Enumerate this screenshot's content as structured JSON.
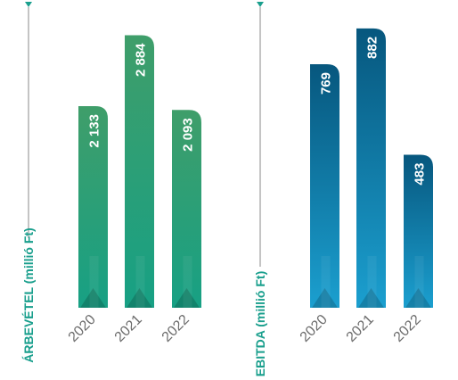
{
  "chart_data": [
    {
      "type": "bar",
      "ylabel": "ÁRBEVÉTEL (millió Ft)",
      "categories": [
        "2020",
        "2021",
        "2022"
      ],
      "values": [
        2133,
        2884,
        2093
      ],
      "value_labels": [
        "2 133",
        "2 884",
        "2 093"
      ],
      "ylim": [
        0,
        3200
      ],
      "grid": false,
      "colors": {
        "top": "#3f9e6a",
        "bottom": "#17a084",
        "axis": "#8a8a8a",
        "marker": "#1a9f8d"
      }
    },
    {
      "type": "bar",
      "ylabel": "EBITDA (millió Ft)",
      "categories": [
        "2020",
        "2021",
        "2022"
      ],
      "values": [
        769,
        882,
        483
      ],
      "value_labels": [
        "769",
        "882",
        "483"
      ],
      "ylim": [
        0,
        955
      ],
      "grid": false,
      "colors": {
        "top": "#07577e",
        "bottom": "#1b9fcf",
        "axis": "#8a8a8a",
        "marker": "#1a9f8d"
      }
    }
  ]
}
